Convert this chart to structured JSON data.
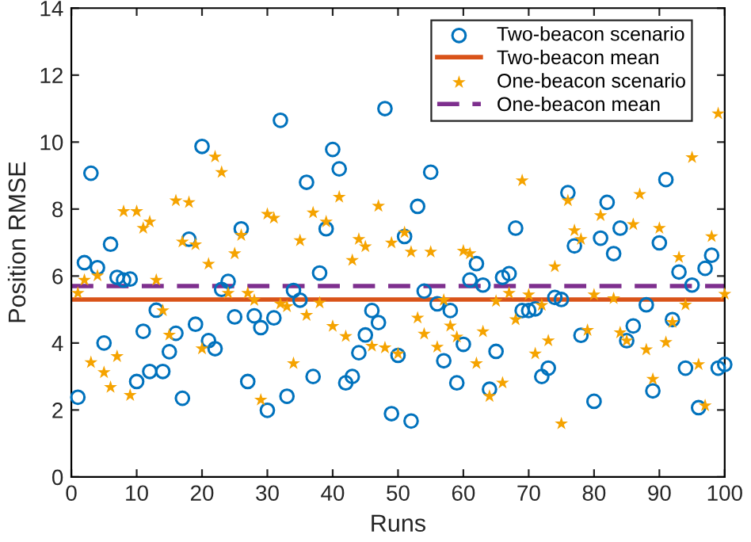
{
  "chart_data": {
    "type": "scatter",
    "xlabel": "Runs",
    "ylabel": "Position RMSE",
    "xlim": [
      0,
      100
    ],
    "xticks": [
      0,
      10,
      20,
      30,
      40,
      50,
      60,
      70,
      80,
      90,
      100
    ],
    "ylim": [
      0,
      14
    ],
    "yticks": [
      0,
      2,
      4,
      6,
      8,
      10,
      12,
      14
    ],
    "grid": false,
    "legend": "top right",
    "x": [
      1,
      2,
      3,
      4,
      5,
      6,
      7,
      8,
      9,
      10,
      11,
      12,
      13,
      14,
      15,
      16,
      17,
      18,
      19,
      20,
      21,
      22,
      23,
      24,
      25,
      26,
      27,
      28,
      29,
      30,
      31,
      32,
      33,
      34,
      35,
      36,
      37,
      38,
      39,
      40,
      41,
      42,
      43,
      44,
      45,
      46,
      47,
      48,
      49,
      50,
      51,
      52,
      53,
      54,
      55,
      56,
      57,
      58,
      59,
      60,
      61,
      62,
      63,
      64,
      65,
      66,
      67,
      68,
      69,
      70,
      71,
      72,
      73,
      74,
      75,
      76,
      77,
      78,
      79,
      80,
      81,
      82,
      83,
      84,
      85,
      86,
      87,
      88,
      89,
      90,
      91,
      92,
      93,
      94,
      95,
      96,
      97,
      98,
      99,
      100
    ],
    "series": [
      {
        "name": "Two-beacon scenario",
        "color": "#0072bd",
        "marker": "circle",
        "values": [
          2.38,
          6.4,
          9.07,
          6.25,
          4.0,
          6.95,
          5.96,
          5.88,
          5.91,
          2.85,
          4.35,
          3.15,
          4.98,
          3.15,
          3.74,
          4.29,
          2.35,
          7.1,
          4.56,
          9.87,
          4.07,
          3.83,
          5.6,
          5.84,
          4.78,
          7.41,
          2.85,
          4.81,
          4.46,
          1.99,
          4.75,
          10.65,
          2.41,
          5.57,
          5.28,
          8.8,
          3.0,
          6.09,
          7.41,
          9.78,
          9.2,
          2.81,
          3.0,
          3.71,
          4.24,
          4.97,
          4.61,
          11.0,
          1.89,
          3.63,
          7.18,
          1.67,
          8.08,
          5.55,
          9.1,
          5.17,
          3.47,
          4.97,
          2.81,
          3.96,
          5.88,
          6.37,
          5.73,
          2.62,
          3.75,
          5.96,
          6.07,
          7.43,
          4.97,
          4.97,
          5.02,
          3.0,
          3.25,
          5.36,
          5.3,
          8.49,
          6.9,
          4.23,
          null,
          2.26,
          7.13,
          8.2,
          6.67,
          7.43,
          4.07,
          4.51,
          null,
          5.14,
          2.57,
          6.99,
          8.88,
          4.7,
          6.12,
          3.25,
          5.73,
          2.07,
          6.23,
          6.62,
          3.25,
          3.36
        ]
      },
      {
        "name": "One-beacon scenario",
        "color": "#f5a300",
        "marker": "star",
        "values": [
          5.49,
          5.88,
          3.42,
          6.01,
          3.12,
          2.68,
          3.6,
          7.93,
          2.44,
          7.93,
          7.43,
          7.62,
          5.88,
          4.97,
          4.24,
          8.25,
          7.02,
          8.2,
          6.94,
          3.83,
          6.36,
          9.56,
          9.1,
          5.49,
          6.67,
          7.22,
          5.49,
          5.28,
          2.3,
          7.85,
          7.73,
          5.17,
          5.09,
          3.39,
          7.06,
          4.83,
          7.89,
          5.2,
          7.62,
          4.5,
          8.36,
          4.2,
          6.47,
          7.1,
          6.88,
          3.91,
          8.09,
          3.86,
          6.99,
          3.68,
          7.3,
          6.72,
          4.75,
          4.27,
          6.72,
          3.88,
          5.28,
          4.51,
          4.18,
          6.75,
          6.67,
          3.39,
          4.34,
          2.41,
          5.25,
          2.81,
          5.49,
          4.7,
          8.85,
          5.44,
          3.68,
          5.13,
          4.07,
          6.28,
          1.59,
          8.25,
          7.36,
          7.1,
          4.38,
          5.44,
          7.81,
          null,
          5.33,
          4.31,
          4.07,
          7.54,
          8.44,
          3.8,
          2.92,
          7.43,
          4.02,
          4.62,
          6.56,
          5.14,
          9.54,
          3.36,
          2.13,
          7.18,
          10.85,
          5.46
        ]
      }
    ],
    "ref_lines": [
      {
        "axis": "y",
        "value": 5.3,
        "label": "Two-beacon mean",
        "color": "#d95319",
        "line_style": "solid"
      },
      {
        "axis": "y",
        "value": 5.7,
        "label": "One-beacon mean",
        "color": "#7e2f8e",
        "line_style": "dashed"
      }
    ]
  }
}
